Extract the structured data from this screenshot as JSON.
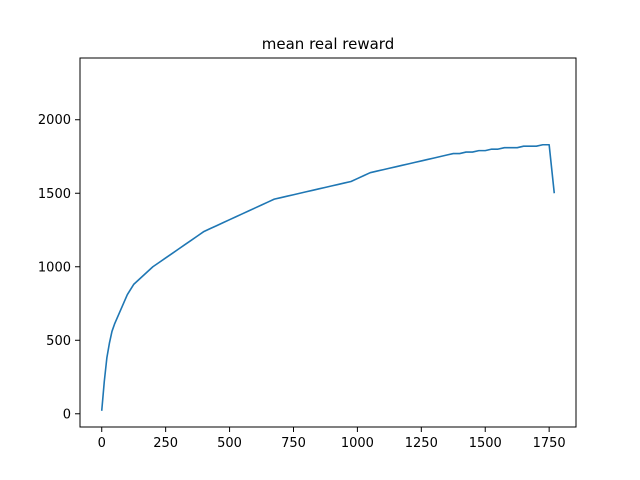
{
  "chart_data": {
    "type": "line",
    "title": "mean real reward",
    "xlabel": "",
    "ylabel": "",
    "xlim": [
      -85,
      1855
    ],
    "ylim": [
      -90,
      2420
    ],
    "x_ticks": [
      0,
      250,
      500,
      750,
      1000,
      1250,
      1500,
      1750
    ],
    "x_tick_labels": [
      "0",
      "250",
      "500",
      "750",
      "1000",
      "1250",
      "1500",
      "1750"
    ],
    "y_ticks": [
      0,
      500,
      1000,
      1500,
      2000
    ],
    "y_tick_labels": [
      "0",
      "500",
      "1000",
      "1500",
      "2000"
    ],
    "grid": false,
    "legend": "none",
    "series": [
      {
        "color": "#1f77b4",
        "x": [
          0,
          10,
          20,
          30,
          40,
          50,
          60,
          70,
          80,
          90,
          100,
          125,
          150,
          175,
          200,
          225,
          250,
          275,
          300,
          325,
          350,
          375,
          400,
          425,
          450,
          475,
          500,
          525,
          550,
          575,
          600,
          625,
          650,
          675,
          700,
          725,
          750,
          775,
          800,
          825,
          850,
          875,
          900,
          925,
          950,
          975,
          1000,
          1025,
          1050,
          1075,
          1100,
          1125,
          1150,
          1175,
          1200,
          1225,
          1250,
          1275,
          1300,
          1325,
          1350,
          1375,
          1400,
          1425,
          1450,
          1475,
          1500,
          1525,
          1550,
          1575,
          1600,
          1625,
          1650,
          1675,
          1700,
          1725,
          1750,
          1770
        ],
        "y": [
          20,
          220,
          380,
          480,
          560,
          610,
          650,
          690,
          730,
          770,
          810,
          880,
          920,
          960,
          1000,
          1030,
          1060,
          1090,
          1120,
          1150,
          1180,
          1210,
          1240,
          1260,
          1280,
          1300,
          1320,
          1340,
          1360,
          1380,
          1400,
          1420,
          1440,
          1460,
          1470,
          1480,
          1490,
          1500,
          1510,
          1520,
          1530,
          1540,
          1550,
          1560,
          1570,
          1580,
          1600,
          1620,
          1640,
          1650,
          1660,
          1670,
          1680,
          1690,
          1700,
          1710,
          1720,
          1730,
          1740,
          1750,
          1760,
          1770,
          1770,
          1780,
          1780,
          1790,
          1790,
          1800,
          1800,
          1810,
          1810,
          1810,
          1820,
          1820,
          1820,
          1830,
          1830,
          1500
        ]
      }
    ]
  }
}
